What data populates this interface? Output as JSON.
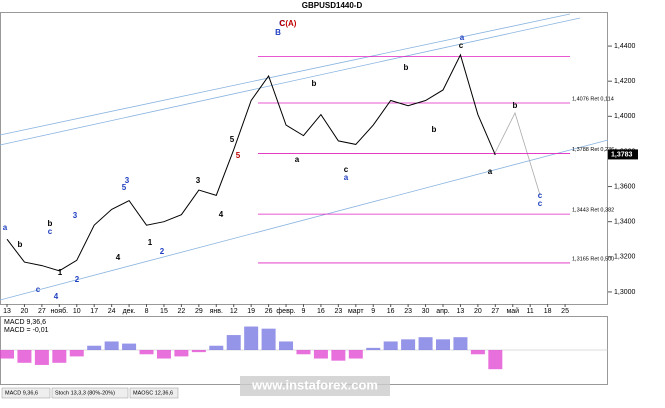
{
  "chart_data": {
    "type": "line",
    "title": "GBPUSD1440-D",
    "categories": [
      "13",
      "20",
      "27",
      "нояб.",
      "10",
      "17",
      "24",
      "дек.",
      "8",
      "15",
      "22",
      "29",
      "янв.",
      "12",
      "19",
      "26",
      "февр.",
      "9",
      "16",
      "23",
      "март",
      "9",
      "16",
      "23",
      "30",
      "апр.",
      "13",
      "20",
      "27",
      "май",
      "11",
      "18",
      "25"
    ],
    "series": [
      {
        "name": "GBPUSD",
        "color": "#000000",
        "values": [
          1.33,
          1.317,
          1.315,
          1.312,
          1.318,
          1.338,
          1.347,
          1.352,
          1.338,
          1.34,
          1.344,
          1.358,
          1.355,
          1.381,
          1.409,
          1.423,
          1.395,
          1.389,
          1.401,
          1.386,
          1.384,
          1.395,
          1.409,
          1.406,
          1.409,
          1.415,
          1.435,
          1.401,
          1.378,
          null,
          null,
          null,
          null
        ]
      }
    ],
    "ylim": [
      1.2954,
      1.4594
    ],
    "yticks": [
      {
        "value": 1.44,
        "label": "1,4400"
      },
      {
        "value": 1.42,
        "label": "1,4200"
      },
      {
        "value": 1.4,
        "label": "1,4000"
      },
      {
        "value": 1.38,
        "label": "1,3800"
      },
      {
        "value": 1.36,
        "label": "1,3600"
      },
      {
        "value": 1.34,
        "label": "1,3400"
      },
      {
        "value": 1.32,
        "label": "1,3200"
      },
      {
        "value": 1.3,
        "label": "1,3000"
      }
    ],
    "current_price": {
      "value": 1.3783,
      "label": "1,3783"
    },
    "levels": [
      {
        "value": 1.434
      },
      {
        "value": 1.4076,
        "label": "1,4076 Ret 0,114"
      },
      {
        "value": 1.3788,
        "label": "1,3788 Ret 0,236"
      },
      {
        "value": 1.3443,
        "label": "1,3443 Ret 0,382"
      },
      {
        "value": 1.3165,
        "label": "1,3165 Ret 0,500"
      }
    ],
    "level_color": "#e020c0",
    "annotations": [
      "a",
      "b",
      "c",
      "b",
      "c",
      "4",
      "1",
      "2",
      "3",
      "4",
      "5",
      "3",
      "1",
      "2",
      "3",
      "4",
      "5",
      "5",
      "B",
      "C",
      "C(A)",
      "b",
      "a",
      "c",
      "a",
      "a",
      "b",
      "b",
      "c",
      "a",
      "b",
      "c",
      "c"
    ],
    "macd": {
      "label": "MACD 9,36,6",
      "value_text": "MACD = -0,01",
      "pos_color": "#7070e0",
      "neg_color": "#e040d0",
      "ylim": [
        -0.015,
        0.015
      ],
      "values": [
        -0.004,
        -0.006,
        -0.007,
        -0.006,
        -0.003,
        0.002,
        0.004,
        0.003,
        -0.002,
        -0.004,
        -0.003,
        -0.001,
        0.002,
        0.007,
        0.011,
        0.01,
        0.004,
        -0.002,
        -0.004,
        -0.005,
        -0.004,
        0.001,
        0.004,
        0.005,
        0.006,
        0.005,
        0.006,
        -0.002,
        -0.009,
        null,
        null,
        null,
        null
      ]
    },
    "tabs": [
      "MACD 9,36,6",
      "Stoch 13,3,3 (80%-20%)",
      "MAOSC 12,36,6"
    ],
    "watermark": "www.instaforex.com"
  }
}
